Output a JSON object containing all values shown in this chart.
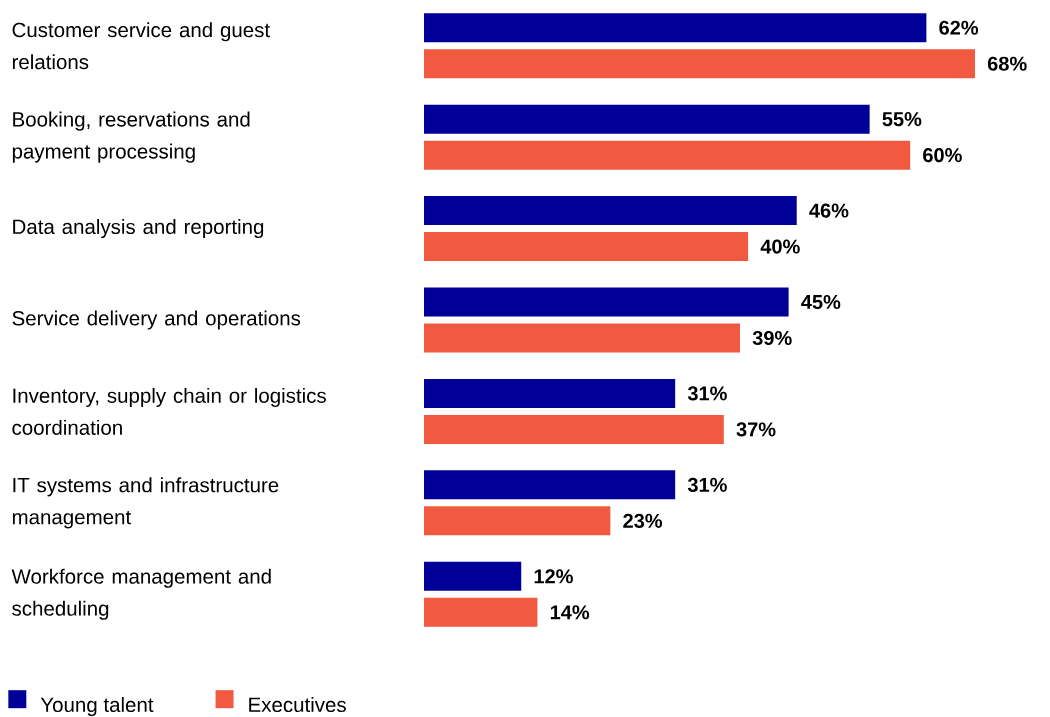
{
  "chart_data": {
    "type": "bar",
    "orientation": "horizontal",
    "categories": [
      "Customer service and guest relations",
      "Booking, reservations and payment processing",
      "Data analysis and reporting",
      "Service delivery and operations",
      "Inventory, supply chain or logistics coordination",
      "IT systems and infrastructure management",
      "Workforce management and scheduling"
    ],
    "series": [
      {
        "name": "Young talent",
        "color": "#000099",
        "values": [
          62,
          55,
          46,
          45,
          31,
          31,
          12
        ],
        "value_labels": [
          "62%",
          "55%",
          "46%",
          "45%",
          "31%",
          "31%",
          "12%"
        ]
      },
      {
        "name": "Executives",
        "color": "#f15a40",
        "values": [
          68,
          60,
          40,
          39,
          37,
          23,
          14
        ],
        "value_labels": [
          "68%",
          "60%",
          "40%",
          "39%",
          "37%",
          "23%",
          "14%"
        ]
      }
    ],
    "legend": "bottom left"
  }
}
